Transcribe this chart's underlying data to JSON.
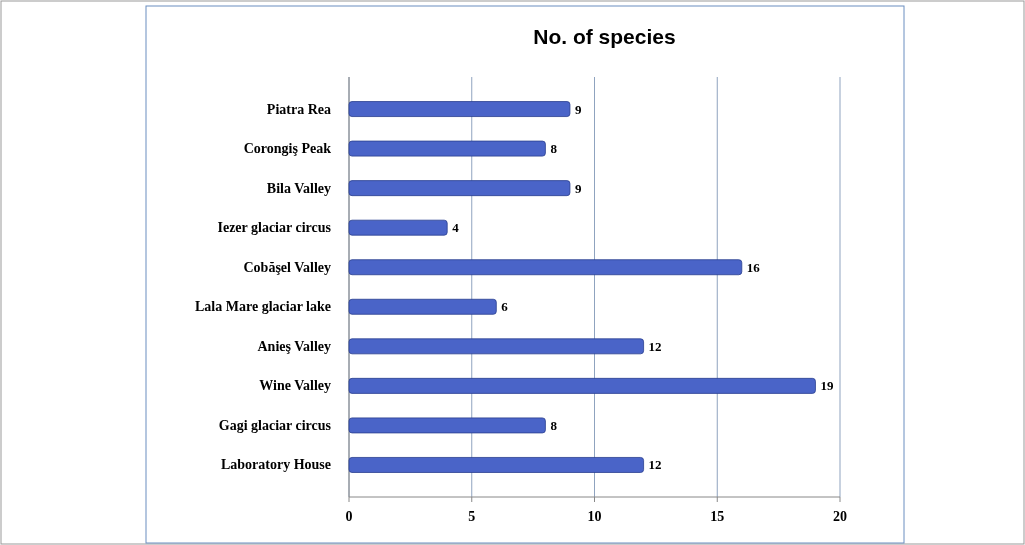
{
  "chart_data": {
    "type": "bar",
    "orientation": "horizontal",
    "title": "No. of species",
    "categories": [
      "Piatra Rea",
      "Corongiş Peak",
      "Bila Valley",
      "Iezer glaciar circus",
      "Cobăşel Valley",
      "Lala Mare glaciar lake",
      "Anieş Valley",
      "Wine Valley",
      "Gagi glaciar circus",
      "Laboratory House"
    ],
    "values": [
      9,
      8,
      9,
      4,
      16,
      6,
      12,
      19,
      8,
      12
    ],
    "color": "#4a64c8",
    "xlim": [
      0,
      20
    ],
    "xticks": [
      0,
      5,
      10,
      15,
      20
    ],
    "grid": "x",
    "data_labels": true
  }
}
